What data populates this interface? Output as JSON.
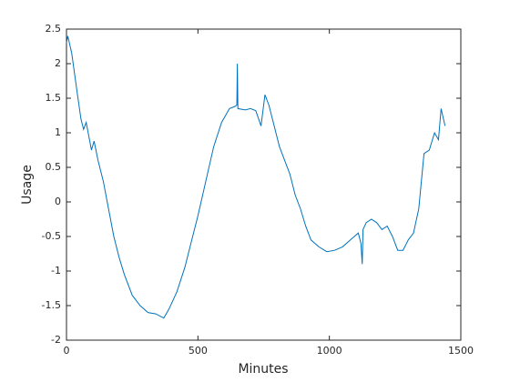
{
  "chart_data": {
    "type": "line",
    "xlabel": "Minutes",
    "ylabel": "Usage",
    "color": "#0072bd",
    "x": [
      0,
      5,
      20,
      40,
      55,
      65,
      75,
      85,
      95,
      105,
      120,
      140,
      160,
      180,
      200,
      220,
      250,
      280,
      310,
      340,
      370,
      390,
      420,
      450,
      480,
      500,
      530,
      560,
      590,
      620,
      640,
      648,
      650,
      652,
      680,
      700,
      720,
      740,
      755,
      770,
      790,
      810,
      830,
      850,
      870,
      890,
      910,
      930,
      960,
      990,
      1020,
      1050,
      1080,
      1110,
      1120,
      1125,
      1128,
      1140,
      1160,
      1180,
      1200,
      1220,
      1240,
      1260,
      1280,
      1300,
      1320,
      1340,
      1360,
      1380,
      1400,
      1415,
      1425,
      1440
    ],
    "values": [
      2.3,
      2.4,
      2.15,
      1.6,
      1.2,
      1.05,
      1.15,
      0.95,
      0.75,
      0.88,
      0.6,
      0.3,
      -0.1,
      -0.5,
      -0.8,
      -1.05,
      -1.35,
      -1.5,
      -1.6,
      -1.62,
      -1.68,
      -1.55,
      -1.3,
      -0.95,
      -0.5,
      -0.2,
      0.3,
      0.8,
      1.15,
      1.35,
      1.38,
      1.4,
      2.0,
      1.35,
      1.33,
      1.35,
      1.32,
      1.1,
      1.55,
      1.4,
      1.1,
      0.8,
      0.6,
      0.4,
      0.1,
      -0.1,
      -0.35,
      -0.55,
      -0.65,
      -0.72,
      -0.7,
      -0.65,
      -0.55,
      -0.45,
      -0.6,
      -0.9,
      -0.4,
      -0.3,
      -0.25,
      -0.3,
      -0.4,
      -0.35,
      -0.5,
      -0.7,
      -0.7,
      -0.55,
      -0.45,
      -0.1,
      0.7,
      0.75,
      1.0,
      0.9,
      1.35,
      1.1
    ],
    "xlim": [
      0,
      1500
    ],
    "xticks": [
      0,
      500,
      1000,
      1500
    ],
    "ylim": [
      -2,
      2.5
    ],
    "yticks": [
      -2,
      -1.5,
      -1,
      -0.5,
      0,
      0.5,
      1,
      1.5,
      2,
      2.5
    ]
  }
}
